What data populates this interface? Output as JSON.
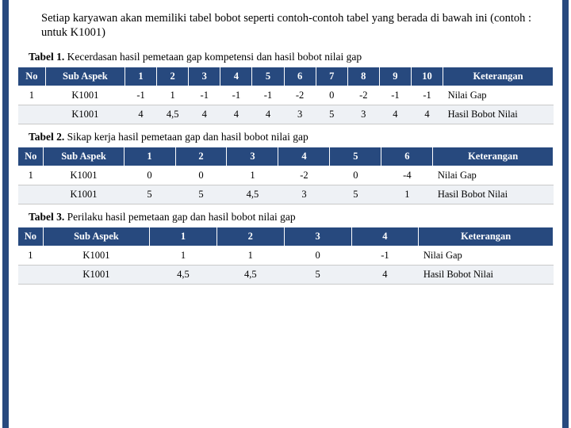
{
  "intro": "Setiap karyawan akan memiliki tabel bobot seperti contoh-contoh tabel yang berada di bawah ini (contoh : untuk K1001)",
  "table1": {
    "caption_bold": "Tabel 1.",
    "caption_rest": " Kecerdasan hasil pemetaan gap kompetensi dan hasil bobot nilai gap",
    "headers": [
      "No",
      "Sub Aspek",
      "1",
      "2",
      "3",
      "4",
      "5",
      "6",
      "7",
      "8",
      "9",
      "10",
      "Keterangan"
    ],
    "rows": [
      [
        "1",
        "K1001",
        "-1",
        "1",
        "-1",
        "-1",
        "-1",
        "-2",
        "0",
        "-2",
        "-1",
        "-1",
        "Nilai Gap"
      ],
      [
        "",
        "K1001",
        "4",
        "4,5",
        "4",
        "4",
        "4",
        "3",
        "5",
        "3",
        "4",
        "4",
        "Hasil Bobot Nilai"
      ]
    ]
  },
  "table2": {
    "caption_bold": "Tabel 2.",
    "caption_rest": " Sikap kerja hasil pemetaan gap dan hasil bobot nilai gap",
    "headers": [
      "No",
      "Sub Aspek",
      "1",
      "2",
      "3",
      "4",
      "5",
      "6",
      "Keterangan"
    ],
    "rows": [
      [
        "1",
        "K1001",
        "0",
        "0",
        "1",
        "-2",
        "0",
        "-4",
        "Nilai Gap"
      ],
      [
        "",
        "K1001",
        "5",
        "5",
        "4,5",
        "3",
        "5",
        "1",
        "Hasil Bobot Nilai"
      ]
    ]
  },
  "table3": {
    "caption_bold": "Tabel 3.",
    "caption_rest": " Perilaku hasil pemetaan gap dan hasil bobot nilai gap",
    "headers": [
      "No",
      "Sub Aspek",
      "1",
      "2",
      "3",
      "4",
      "Keterangan"
    ],
    "rows": [
      [
        "1",
        "K1001",
        "1",
        "1",
        "0",
        "-1",
        "Nilai Gap"
      ],
      [
        "",
        "K1001",
        "4,5",
        "4,5",
        "5",
        "4",
        "Hasil Bobot Nilai"
      ]
    ]
  }
}
